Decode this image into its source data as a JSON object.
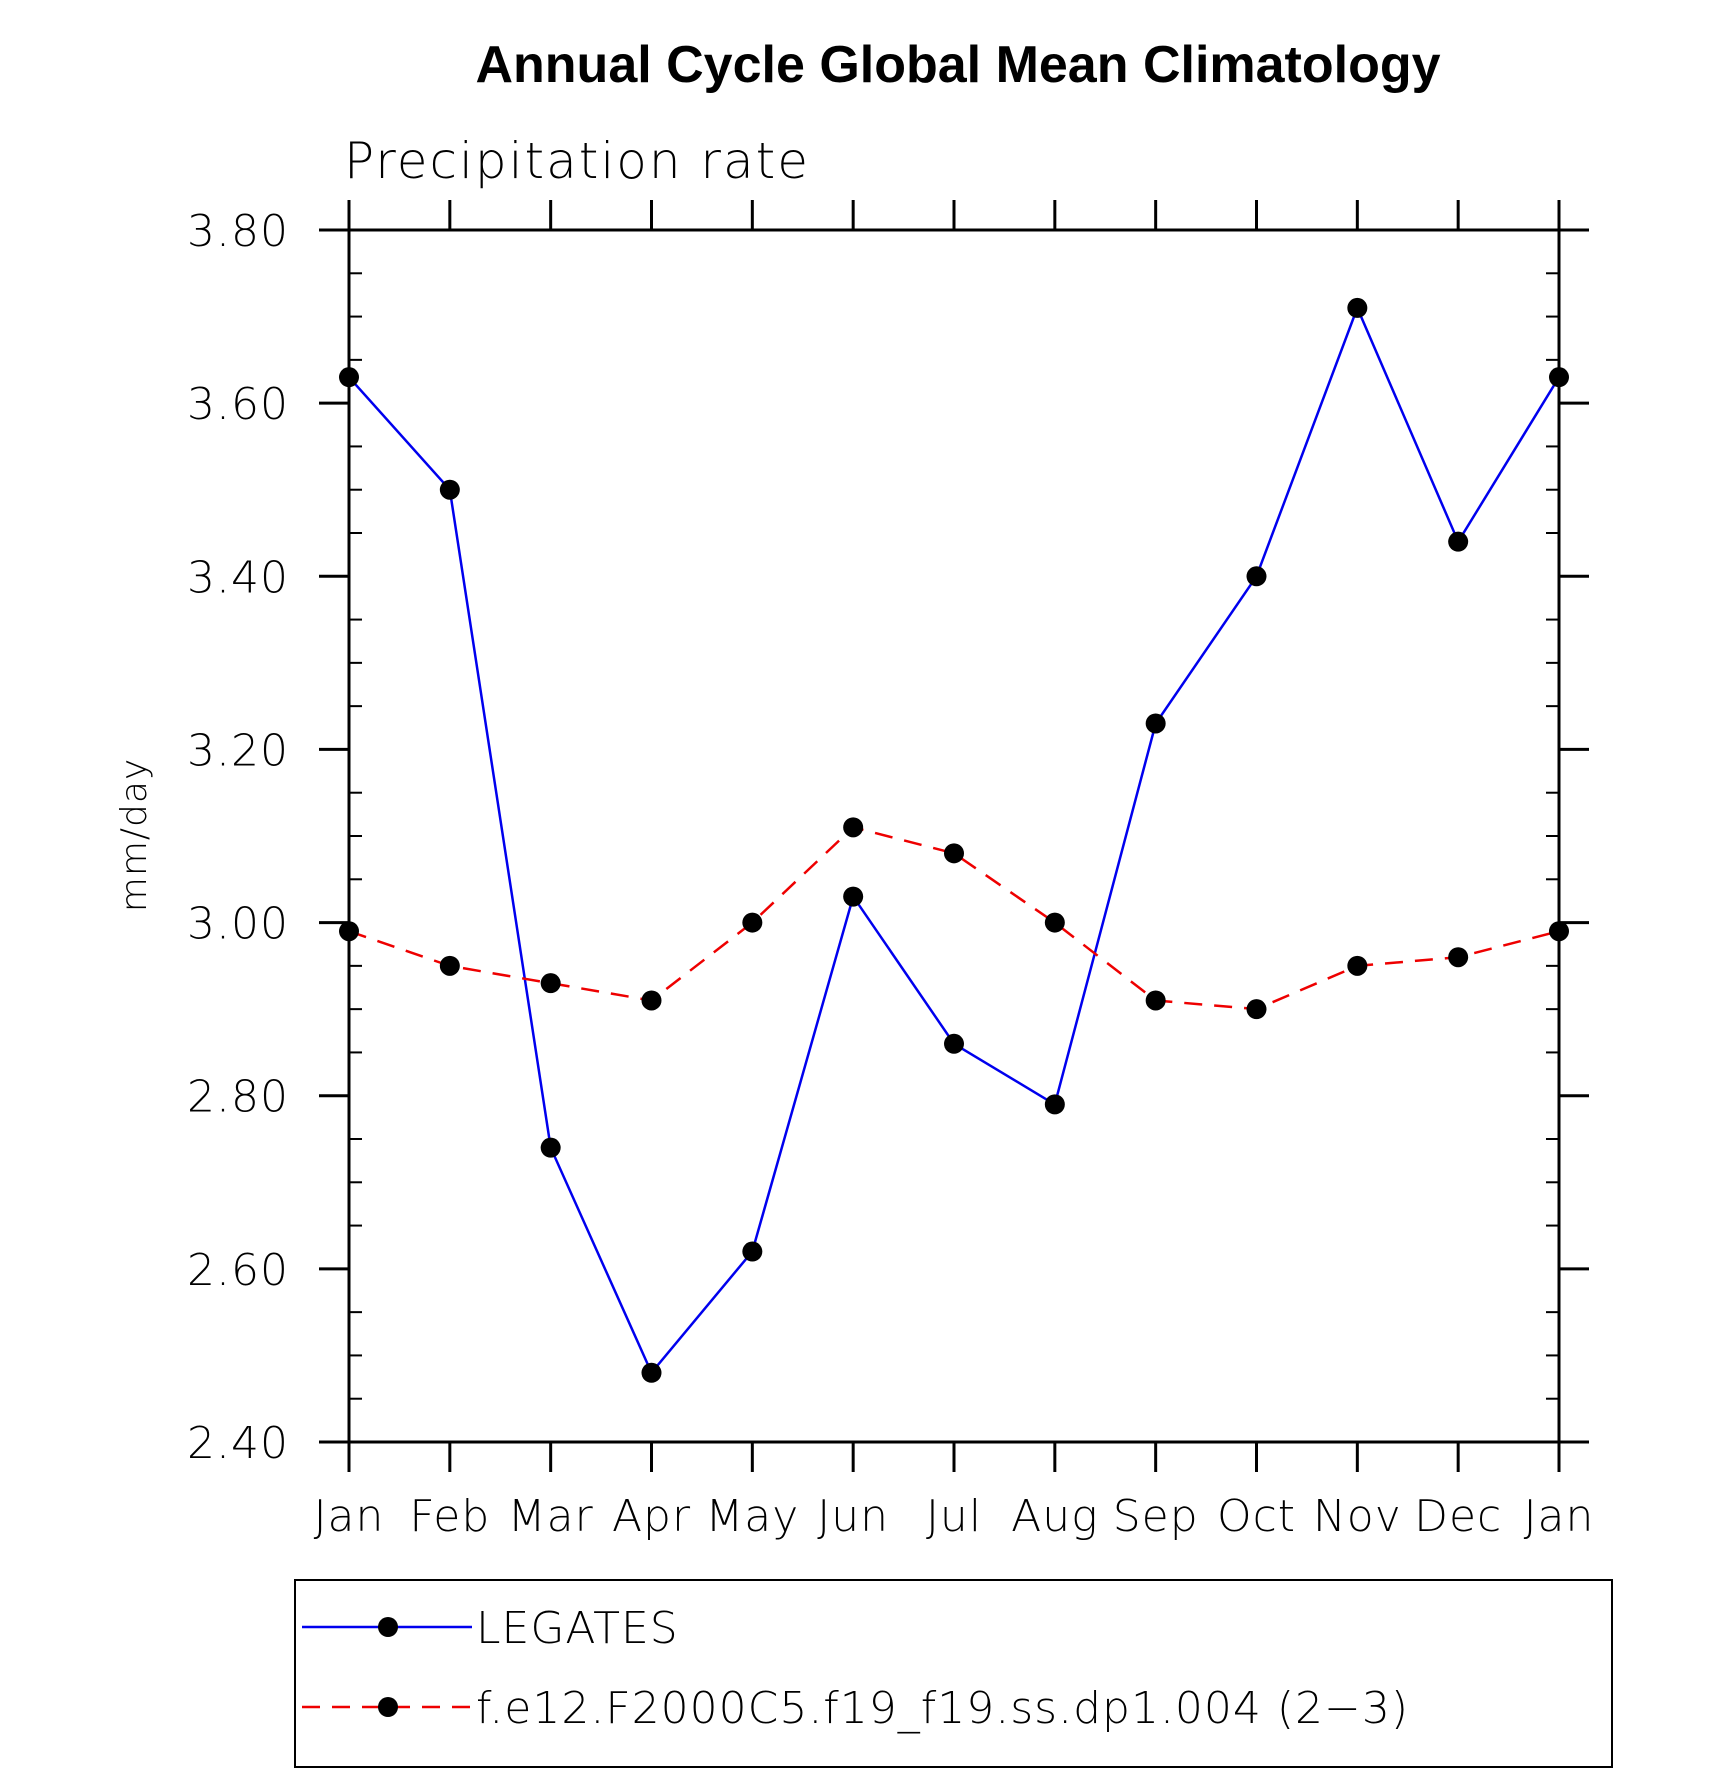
{
  "chart_data": {
    "type": "line",
    "title": "Annual Cycle Global Mean Climatology",
    "subtitle": "Precipitation rate",
    "xlabel": "",
    "ylabel": "mm/day",
    "categories": [
      "Jan",
      "Feb",
      "Mar",
      "Apr",
      "May",
      "Jun",
      "Jul",
      "Aug",
      "Sep",
      "Oct",
      "Nov",
      "Dec",
      "Jan"
    ],
    "ylim": [
      2.4,
      3.8
    ],
    "yticks": [
      2.4,
      2.6,
      2.8,
      3.0,
      3.2,
      3.4,
      3.6,
      3.8
    ],
    "ytick_labels": [
      "2.40",
      "2.60",
      "2.80",
      "3.00",
      "3.20",
      "3.40",
      "3.60",
      "3.80"
    ],
    "legend_position": "bottom",
    "series": [
      {
        "name": "LEGATES",
        "color": "#0000ee",
        "dash": "solid",
        "marker": "circle",
        "values": [
          3.63,
          3.5,
          2.74,
          2.48,
          2.62,
          3.03,
          2.86,
          2.79,
          3.23,
          3.4,
          3.71,
          3.44,
          3.63
        ]
      },
      {
        "name": "f.e12.F2000C5.f19_f19.ss.dp1.004 (2−3)",
        "color": "#ee0000",
        "dash": "dashed",
        "marker": "circle",
        "values": [
          2.99,
          2.95,
          2.93,
          2.91,
          3.0,
          3.11,
          3.08,
          3.0,
          2.91,
          2.9,
          2.95,
          2.96,
          2.99
        ]
      }
    ]
  }
}
